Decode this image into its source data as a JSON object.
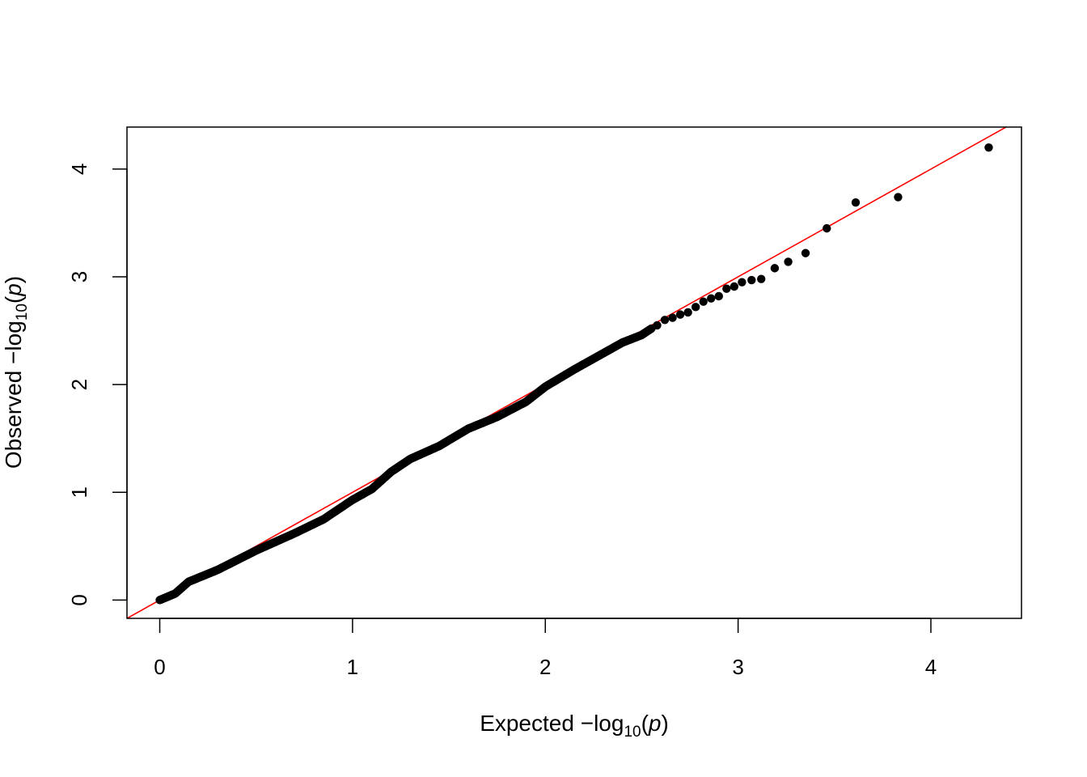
{
  "chart_data": {
    "type": "scatter",
    "title": "",
    "xlabel": {
      "prefix": "Expected  −log",
      "sub": "10",
      "open": "(",
      "var": "p",
      "close": ")"
    },
    "ylabel": {
      "prefix": "Observed  −log",
      "sub": "10",
      "open": "(",
      "var": "p",
      "close": ")"
    },
    "xlim": [
      -0.17,
      4.47
    ],
    "ylim": [
      -0.17,
      4.39
    ],
    "x_ticks": [
      0,
      1,
      2,
      3,
      4
    ],
    "y_ticks": [
      0,
      1,
      2,
      3,
      4
    ],
    "x_tick_labels": [
      "0",
      "1",
      "2",
      "3",
      "4"
    ],
    "y_tick_labels": [
      "0",
      "1",
      "2",
      "3",
      "4"
    ],
    "point_color": "#000000",
    "reference_line": {
      "type": "identity",
      "intercept": 0,
      "slope": 1,
      "color": "#ff0000"
    },
    "dense_curve": {
      "x": [
        0.0,
        0.08,
        0.15,
        0.3,
        0.5,
        0.7,
        0.85,
        1.0,
        1.1,
        1.2,
        1.3,
        1.45,
        1.6,
        1.75,
        1.9,
        2.0,
        2.15,
        2.3,
        2.4,
        2.5,
        2.55
      ],
      "y": [
        0.0,
        0.06,
        0.17,
        0.28,
        0.46,
        0.62,
        0.75,
        0.93,
        1.03,
        1.19,
        1.31,
        1.43,
        1.59,
        1.7,
        1.84,
        1.98,
        2.14,
        2.29,
        2.39,
        2.46,
        2.52
      ]
    },
    "tail_points": {
      "x": [
        2.58,
        2.62,
        2.66,
        2.7,
        2.74,
        2.78,
        2.82,
        2.86,
        2.9,
        2.94,
        2.98,
        3.02,
        3.07,
        3.12,
        3.19,
        3.26,
        3.35,
        3.46,
        3.61,
        3.83,
        4.3
      ],
      "y": [
        2.55,
        2.6,
        2.62,
        2.65,
        2.67,
        2.72,
        2.77,
        2.8,
        2.82,
        2.89,
        2.91,
        2.95,
        2.97,
        2.98,
        3.08,
        3.14,
        3.22,
        3.45,
        3.69,
        3.74,
        4.2
      ]
    }
  }
}
